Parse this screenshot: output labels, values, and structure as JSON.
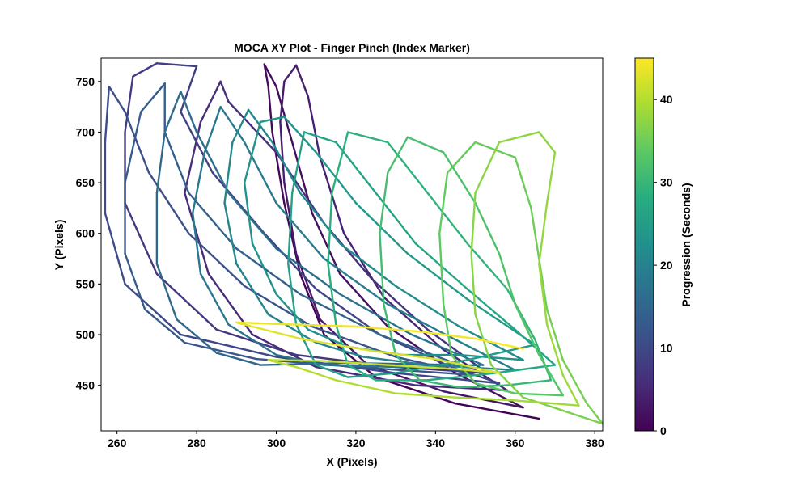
{
  "chart_data": {
    "type": "line",
    "title": "MOCA XY Plot - Finger Pinch (Index Marker)",
    "xlabel": "X (Pixels)",
    "ylabel": "Y (Pixels)",
    "xlim": [
      256,
      382
    ],
    "ylim": [
      405,
      773
    ],
    "xticks": [
      260,
      280,
      300,
      320,
      340,
      360,
      380
    ],
    "yticks": [
      450,
      500,
      550,
      600,
      650,
      700,
      750
    ],
    "grid": false,
    "colorbar": {
      "label": "Progression (Seconds)",
      "range": [
        0,
        45
      ],
      "ticks": [
        0,
        10,
        20,
        30,
        40
      ],
      "colormap": "viridis"
    },
    "trajectory_note_points": "Sampled trajectory points; each point has x, y (pixels) and t (seconds).",
    "series": [
      {
        "t0": 0.0,
        "t1": 2.5,
        "points": [
          [
            366,
            417
          ],
          [
            345,
            432
          ],
          [
            325,
            458
          ],
          [
            312,
            500
          ],
          [
            306,
            560
          ],
          [
            302,
            630
          ],
          [
            299,
            700
          ],
          [
            298,
            745
          ],
          [
            297,
            767
          ],
          [
            300,
            745
          ],
          [
            304,
            690
          ],
          [
            309,
            620
          ],
          [
            316,
            560
          ],
          [
            328,
            508
          ],
          [
            345,
            462
          ],
          [
            362,
            428
          ]
        ]
      },
      {
        "t0": 2.5,
        "t1": 5.0,
        "points": [
          [
            362,
            428
          ],
          [
            342,
            444
          ],
          [
            323,
            470
          ],
          [
            311,
            515
          ],
          [
            305,
            580
          ],
          [
            302,
            650
          ],
          [
            301,
            710
          ],
          [
            302,
            750
          ],
          [
            305,
            766
          ],
          [
            308,
            735
          ],
          [
            311,
            675
          ],
          [
            317,
            600
          ],
          [
            327,
            537
          ],
          [
            342,
            485
          ],
          [
            358,
            445
          ]
        ]
      },
      {
        "t0": 5.0,
        "t1": 7.0,
        "points": [
          [
            358,
            445
          ],
          [
            335,
            450
          ],
          [
            310,
            468
          ],
          [
            294,
            500
          ],
          [
            283,
            560
          ],
          [
            277,
            640
          ],
          [
            281,
            710
          ],
          [
            286,
            750
          ],
          [
            288,
            730
          ],
          [
            300,
            680
          ],
          [
            312,
            610
          ],
          [
            324,
            555
          ],
          [
            338,
            505
          ],
          [
            353,
            462
          ]
        ]
      },
      {
        "t0": 7.0,
        "t1": 9.5,
        "points": [
          [
            353,
            462
          ],
          [
            330,
            468
          ],
          [
            305,
            480
          ],
          [
            285,
            505
          ],
          [
            270,
            560
          ],
          [
            262,
            630
          ],
          [
            262,
            700
          ],
          [
            264,
            755
          ],
          [
            270,
            768
          ],
          [
            280,
            765
          ],
          [
            276,
            720
          ],
          [
            284,
            660
          ],
          [
            297,
            600
          ],
          [
            310,
            545
          ],
          [
            326,
            500
          ],
          [
            344,
            468
          ],
          [
            356,
            452
          ]
        ]
      },
      {
        "t0": 9.5,
        "t1": 12.0,
        "points": [
          [
            356,
            452
          ],
          [
            330,
            462
          ],
          [
            300,
            478
          ],
          [
            276,
            500
          ],
          [
            262,
            550
          ],
          [
            257,
            620
          ],
          [
            257,
            690
          ],
          [
            258,
            745
          ],
          [
            262,
            720
          ],
          [
            268,
            660
          ],
          [
            278,
            600
          ],
          [
            292,
            548
          ],
          [
            309,
            508
          ],
          [
            330,
            478
          ],
          [
            350,
            460
          ]
        ]
      },
      {
        "t0": 12.0,
        "t1": 14.5,
        "points": [
          [
            350,
            460
          ],
          [
            320,
            468
          ],
          [
            295,
            476
          ],
          [
            277,
            492
          ],
          [
            267,
            525
          ],
          [
            262,
            580
          ],
          [
            262,
            650
          ],
          [
            266,
            720
          ],
          [
            272,
            748
          ],
          [
            272,
            700
          ],
          [
            278,
            640
          ],
          [
            290,
            585
          ],
          [
            306,
            540
          ],
          [
            326,
            500
          ],
          [
            346,
            470
          ]
        ]
      },
      {
        "t0": 14.5,
        "t1": 17.0,
        "points": [
          [
            346,
            470
          ],
          [
            318,
            472
          ],
          [
            296,
            470
          ],
          [
            285,
            482
          ],
          [
            275,
            515
          ],
          [
            270,
            570
          ],
          [
            270,
            640
          ],
          [
            272,
            700
          ],
          [
            276,
            740
          ],
          [
            280,
            700
          ],
          [
            288,
            640
          ],
          [
            300,
            585
          ],
          [
            316,
            540
          ],
          [
            334,
            500
          ],
          [
            352,
            470
          ]
        ]
      },
      {
        "t0": 17.0,
        "t1": 19.5,
        "points": [
          [
            352,
            470
          ],
          [
            330,
            468
          ],
          [
            312,
            470
          ],
          [
            300,
            480
          ],
          [
            288,
            510
          ],
          [
            281,
            560
          ],
          [
            279,
            620
          ],
          [
            282,
            680
          ],
          [
            286,
            725
          ],
          [
            292,
            690
          ],
          [
            300,
            630
          ],
          [
            312,
            575
          ],
          [
            328,
            530
          ],
          [
            345,
            495
          ],
          [
            360,
            465
          ]
        ]
      },
      {
        "t0": 19.5,
        "t1": 22.0,
        "points": [
          [
            360,
            465
          ],
          [
            338,
            470
          ],
          [
            322,
            478
          ],
          [
            310,
            492
          ],
          [
            298,
            520
          ],
          [
            290,
            570
          ],
          [
            287,
            630
          ],
          [
            289,
            690
          ],
          [
            293,
            722
          ],
          [
            299,
            690
          ],
          [
            306,
            640
          ],
          [
            316,
            590
          ],
          [
            330,
            548
          ],
          [
            346,
            508
          ],
          [
            362,
            475
          ]
        ]
      },
      {
        "t0": 22.0,
        "t1": 24.5,
        "points": [
          [
            362,
            475
          ],
          [
            346,
            480
          ],
          [
            332,
            480
          ],
          [
            318,
            488
          ],
          [
            308,
            505
          ],
          [
            300,
            540
          ],
          [
            294,
            590
          ],
          [
            292,
            650
          ],
          [
            296,
            710
          ],
          [
            302,
            715
          ],
          [
            310,
            680
          ],
          [
            320,
            630
          ],
          [
            333,
            580
          ],
          [
            348,
            535
          ],
          [
            365,
            490
          ]
        ]
      },
      {
        "t0": 24.5,
        "t1": 27.0,
        "points": [
          [
            365,
            490
          ],
          [
            348,
            475
          ],
          [
            330,
            462
          ],
          [
            318,
            458
          ],
          [
            310,
            470
          ],
          [
            305,
            510
          ],
          [
            303,
            570
          ],
          [
            304,
            640
          ],
          [
            307,
            700
          ],
          [
            315,
            690
          ],
          [
            325,
            640
          ],
          [
            335,
            590
          ],
          [
            348,
            545
          ],
          [
            360,
            505
          ],
          [
            370,
            470
          ]
        ]
      },
      {
        "t0": 27.0,
        "t1": 30.0,
        "points": [
          [
            370,
            470
          ],
          [
            355,
            462
          ],
          [
            338,
            455
          ],
          [
            325,
            455
          ],
          [
            318,
            470
          ],
          [
            315,
            510
          ],
          [
            313,
            570
          ],
          [
            314,
            640
          ],
          [
            318,
            700
          ],
          [
            328,
            690
          ],
          [
            338,
            640
          ],
          [
            348,
            590
          ],
          [
            358,
            545
          ],
          [
            365,
            495
          ],
          [
            369,
            455
          ]
        ]
      },
      {
        "t0": 30.0,
        "t1": 33.0,
        "points": [
          [
            369,
            455
          ],
          [
            358,
            450
          ],
          [
            346,
            448
          ],
          [
            336,
            455
          ],
          [
            330,
            480
          ],
          [
            327,
            530
          ],
          [
            326,
            600
          ],
          [
            328,
            660
          ],
          [
            333,
            695
          ],
          [
            342,
            680
          ],
          [
            350,
            630
          ],
          [
            356,
            580
          ],
          [
            360,
            530
          ],
          [
            366,
            480
          ],
          [
            372,
            440
          ]
        ]
      },
      {
        "t0": 33.0,
        "t1": 36.0,
        "points": [
          [
            372,
            440
          ],
          [
            360,
            442
          ],
          [
            350,
            452
          ],
          [
            344,
            480
          ],
          [
            342,
            530
          ],
          [
            341,
            600
          ],
          [
            343,
            660
          ],
          [
            350,
            690
          ],
          [
            360,
            675
          ],
          [
            364,
            625
          ],
          [
            366,
            575
          ],
          [
            368,
            525
          ],
          [
            372,
            475
          ],
          [
            378,
            432
          ],
          [
            382,
            412
          ]
        ]
      },
      {
        "t0": 36.0,
        "t1": 38.5,
        "points": [
          [
            382,
            412
          ],
          [
            372,
            425
          ],
          [
            362,
            438
          ],
          [
            354,
            470
          ],
          [
            350,
            520
          ],
          [
            349,
            580
          ],
          [
            350,
            640
          ],
          [
            356,
            690
          ],
          [
            366,
            700
          ],
          [
            370,
            680
          ],
          [
            368,
            630
          ],
          [
            366,
            570
          ],
          [
            368,
            510
          ],
          [
            372,
            460
          ],
          [
            376,
            430
          ]
        ]
      },
      {
        "t0": 38.5,
        "t1": 42.0,
        "points": [
          [
            376,
            430
          ],
          [
            360,
            435
          ],
          [
            345,
            438
          ],
          [
            330,
            442
          ],
          [
            315,
            455
          ],
          [
            305,
            468
          ],
          [
            298,
            475
          ],
          [
            312,
            474
          ],
          [
            328,
            470
          ],
          [
            345,
            466
          ],
          [
            356,
            462
          ]
        ]
      },
      {
        "t0": 42.0,
        "t1": 45.0,
        "points": [
          [
            356,
            462
          ],
          [
            340,
            476
          ],
          [
            324,
            484
          ],
          [
            306,
            496
          ],
          [
            296,
            506
          ],
          [
            290,
            512
          ],
          [
            304,
            510
          ],
          [
            320,
            508
          ],
          [
            336,
            503
          ],
          [
            350,
            496
          ],
          [
            362,
            486
          ]
        ]
      }
    ]
  }
}
